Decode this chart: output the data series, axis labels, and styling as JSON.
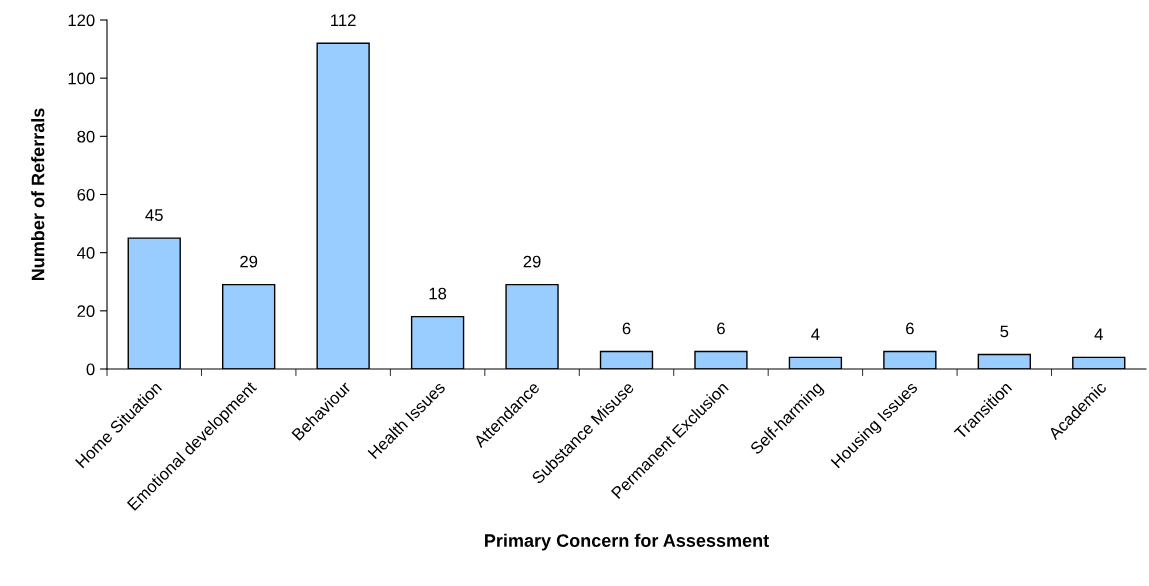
{
  "chart_data": {
    "type": "bar",
    "xlabel": "Primary Concern for Assessment",
    "ylabel": "Number of Referrals",
    "categories": [
      "Home Situation",
      "Emotional development",
      "Behaviour",
      "Health Issues",
      "Attendance",
      "Substance Misuse",
      "Permanent Exclusion",
      "Self-harming",
      "Housing Issues",
      "Transition",
      "Academic"
    ],
    "values": [
      45,
      29,
      112,
      18,
      29,
      6,
      6,
      4,
      6,
      5,
      4
    ],
    "color": "#99ccff",
    "ylim": [
      0,
      120
    ],
    "yticks": [
      0,
      20,
      40,
      60,
      80,
      100,
      120
    ],
    "data_labels": true,
    "grid": false,
    "legend": false
  }
}
